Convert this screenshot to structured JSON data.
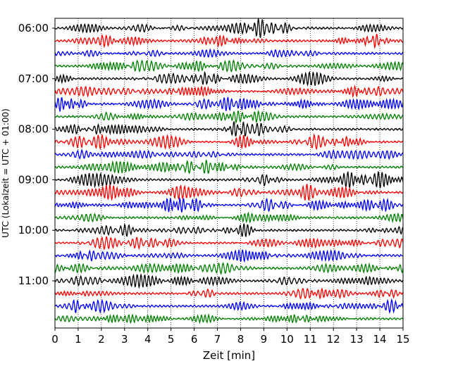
{
  "chart_data": {
    "type": "line",
    "description_kind": "helicorder seismogram (stacked 15-minute traces)",
    "xlabel": "Zeit  [min]",
    "ylabel": "UTC (Lokalzeit = UTC + 01:00)",
    "xlim": [
      0,
      15
    ],
    "x_ticks": [
      "0",
      "1",
      "2",
      "3",
      "4",
      "5",
      "6",
      "7",
      "8",
      "9",
      "10",
      "11",
      "12",
      "13",
      "14",
      "15"
    ],
    "y_tick_labels": [
      "06:00",
      "07:00",
      "08:00",
      "09:00",
      "10:00",
      "11:00"
    ],
    "trace_start_time": "06:00",
    "trace_interval_minutes": 15,
    "trace_count": 24,
    "color_cycle": [
      "#000000",
      "#ff0000",
      "#0000ff",
      "#008000"
    ],
    "grid": "vertical dotted lines at each minute",
    "legend": "none"
  }
}
